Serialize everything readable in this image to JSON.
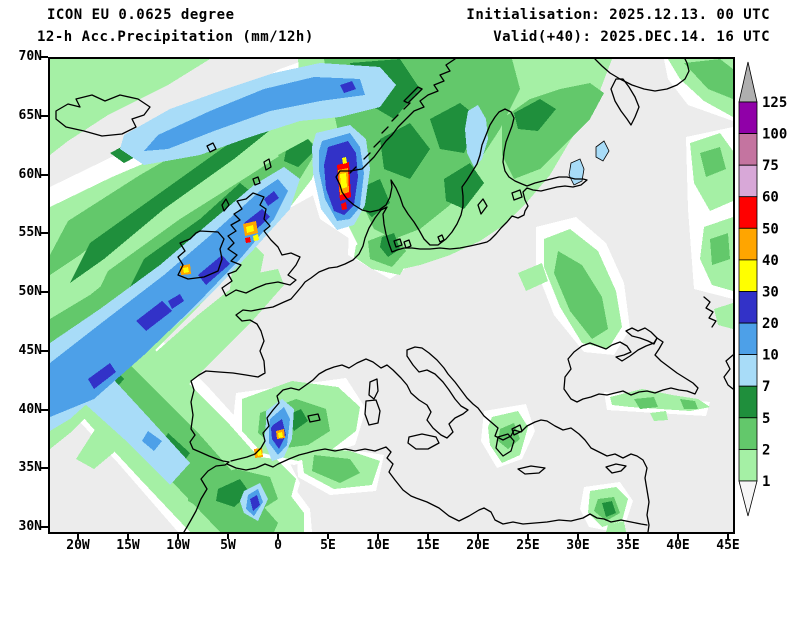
{
  "header": {
    "model": "ICON EU 0.0625 degree",
    "product": "12-h Acc.Precipitation (mm/12h)",
    "init": "Initialisation: 2025.12.13. 00 UTC",
    "valid": "Valid(+40): 2025.DEC.14. 16 UTC"
  },
  "axes": {
    "lat_ticks": [
      "70N",
      "65N",
      "60N",
      "55N",
      "50N",
      "45N",
      "40N",
      "35N",
      "30N"
    ],
    "lon_ticks": [
      "20W",
      "15W",
      "10W",
      "5W",
      "0",
      "5E",
      "10E",
      "15E",
      "20E",
      "25E",
      "30E",
      "35E",
      "40E",
      "45E"
    ]
  },
  "colorbar": {
    "boundary_labels": [
      "125",
      "100",
      "75",
      "60",
      "50",
      "40",
      "30",
      "20",
      "10",
      "7",
      "5",
      "2",
      "1"
    ],
    "cell_colors_top_to_bottom": [
      "#9000A8",
      "#C474A0",
      "#D8A8D8",
      "#FF0000",
      "#FFA500",
      "#FFFF00",
      "#3232C8",
      "#4DA0E8",
      "#A8DCF8",
      "#1F8F3C",
      "#63C86B",
      "#A5F0A5"
    ],
    "over_color": "#AFAFAF",
    "under_color": "#F6F6F6"
  },
  "map": {
    "background_color": "#ECECEC",
    "coastline_color": "#000000"
  }
}
